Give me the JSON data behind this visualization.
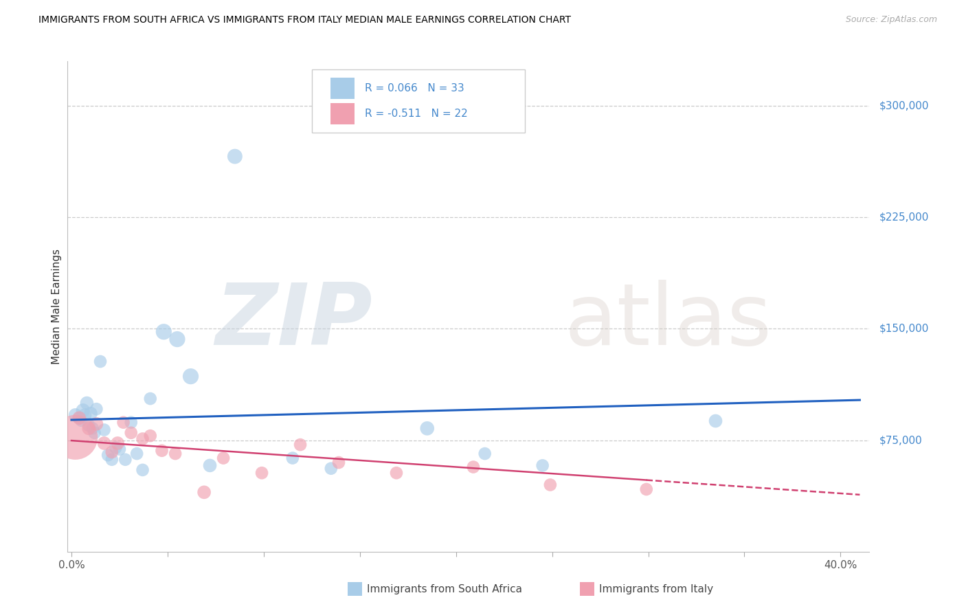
{
  "title": "IMMIGRANTS FROM SOUTH AFRICA VS IMMIGRANTS FROM ITALY MEDIAN MALE EARNINGS CORRELATION CHART",
  "source": "Source: ZipAtlas.com",
  "ylabel": "Median Male Earnings",
  "legend1_label": "Immigrants from South Africa",
  "legend2_label": "Immigrants from Italy",
  "R1": 0.066,
  "N1": 33,
  "R2": -0.511,
  "N2": 22,
  "color_blue": "#a8cce8",
  "color_pink": "#f0a0b0",
  "color_blue_line": "#2060c0",
  "color_pink_line": "#d04070",
  "ytick_color": "#4488cc",
  "grid_color": "#cccccc",
  "ylim": [
    0,
    330000
  ],
  "xlim": [
    -0.002,
    0.415
  ],
  "ytick_vals": [
    75000,
    150000,
    225000,
    300000
  ],
  "ytick_labels": [
    "$75,000",
    "$150,000",
    "$225,000",
    "$300,000"
  ],
  "xtick_vals": [
    0.0,
    0.05,
    0.1,
    0.15,
    0.2,
    0.25,
    0.3,
    0.35,
    0.4
  ],
  "sa_x": [
    0.002,
    0.004,
    0.005,
    0.006,
    0.007,
    0.008,
    0.009,
    0.01,
    0.011,
    0.012,
    0.013,
    0.015,
    0.017,
    0.019,
    0.021,
    0.023,
    0.025,
    0.028,
    0.031,
    0.034,
    0.037,
    0.041,
    0.048,
    0.055,
    0.062,
    0.072,
    0.085,
    0.115,
    0.135,
    0.185,
    0.215,
    0.245,
    0.335
  ],
  "sa_y": [
    92000,
    90000,
    88000,
    95000,
    92000,
    100000,
    85000,
    93000,
    83000,
    80000,
    96000,
    128000,
    82000,
    65000,
    62000,
    70000,
    69000,
    62000,
    87000,
    66000,
    55000,
    103000,
    148000,
    143000,
    118000,
    58000,
    266000,
    63000,
    56000,
    83000,
    66000,
    58000,
    88000
  ],
  "sa_size": [
    200,
    180,
    150,
    220,
    200,
    200,
    180,
    200,
    180,
    180,
    180,
    180,
    180,
    180,
    180,
    180,
    180,
    180,
    180,
    180,
    180,
    180,
    280,
    280,
    280,
    200,
    250,
    180,
    180,
    220,
    180,
    180,
    200
  ],
  "it_x": [
    0.002,
    0.004,
    0.009,
    0.013,
    0.017,
    0.021,
    0.024,
    0.027,
    0.031,
    0.037,
    0.041,
    0.047,
    0.054,
    0.069,
    0.079,
    0.099,
    0.119,
    0.139,
    0.169,
    0.209,
    0.249,
    0.299
  ],
  "it_y": [
    77000,
    90000,
    83000,
    86000,
    73000,
    67000,
    73000,
    87000,
    80000,
    76000,
    78000,
    68000,
    66000,
    40000,
    63000,
    53000,
    72000,
    60000,
    53000,
    57000,
    45000,
    42000
  ],
  "it_size": [
    2200,
    200,
    200,
    200,
    200,
    180,
    200,
    180,
    180,
    180,
    180,
    180,
    180,
    200,
    180,
    180,
    180,
    180,
    180,
    180,
    180,
    180
  ]
}
